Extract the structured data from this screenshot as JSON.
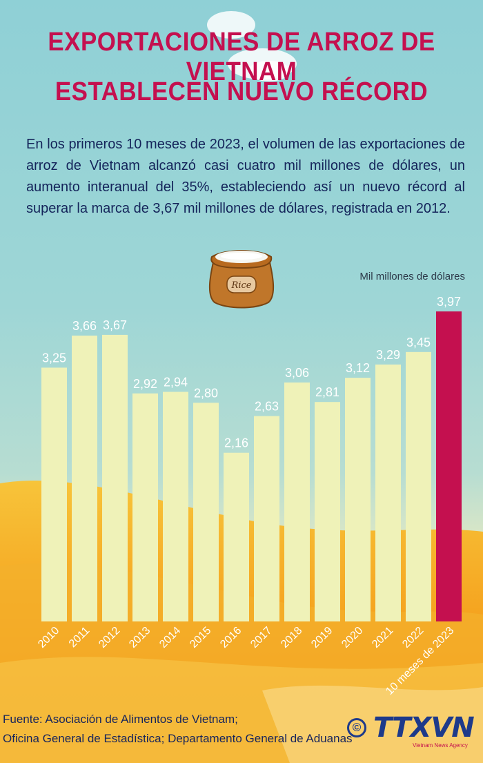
{
  "header": {
    "title_line1": "EXPORTACIONES DE ARROZ DE VIETNAM",
    "title_line2": "ESTABLECEN NUEVO RÉCORD"
  },
  "intro": "En los primeros 10 meses de 2023, el volumen de las exportaciones de arroz de Vietnam alcanzó casi cuatro mil millones de dólares, un aumento interanual del 35%, estableciendo así un nuevo récord al superar la marca de 3,67 mil millones de dólares, registrada en 2012.",
  "rice_bag_label": "Rice",
  "chart_data": {
    "type": "bar",
    "unit_label": "Mil millones de dólares",
    "categories": [
      "2010",
      "2011",
      "2012",
      "2013",
      "2014",
      "2015",
      "2016",
      "2017",
      "2018",
      "2019",
      "2020",
      "2021",
      "2022",
      "10 meses de 2023"
    ],
    "values": [
      3.25,
      3.66,
      3.67,
      2.92,
      2.94,
      2.8,
      2.16,
      2.63,
      3.06,
      2.81,
      3.12,
      3.29,
      3.45,
      3.97
    ],
    "value_labels": [
      "3,25",
      "3,66",
      "3,67",
      "2,92",
      "2,94",
      "2,80",
      "2,16",
      "2,63",
      "3,06",
      "2,81",
      "3,12",
      "3,29",
      "3,45",
      "3,97"
    ],
    "ylim": [
      0,
      4
    ],
    "highlight_index": 13,
    "colors": {
      "bar": "#eff2b8",
      "highlight": "#c4104f",
      "label": "#ffffff"
    }
  },
  "footer": {
    "source_line1": "Fuente: Asociación de Alimentos de Vietnam;",
    "source_line2": "Oficina General de Estadística; Departamento General de Aduanas",
    "copyright_symbol": "©",
    "logo_text": "TTXVN",
    "logo_sub": "Vietnam News Agency"
  },
  "colors": {
    "title": "#c4104f",
    "text": "#14245a",
    "field": "#f5a623"
  }
}
